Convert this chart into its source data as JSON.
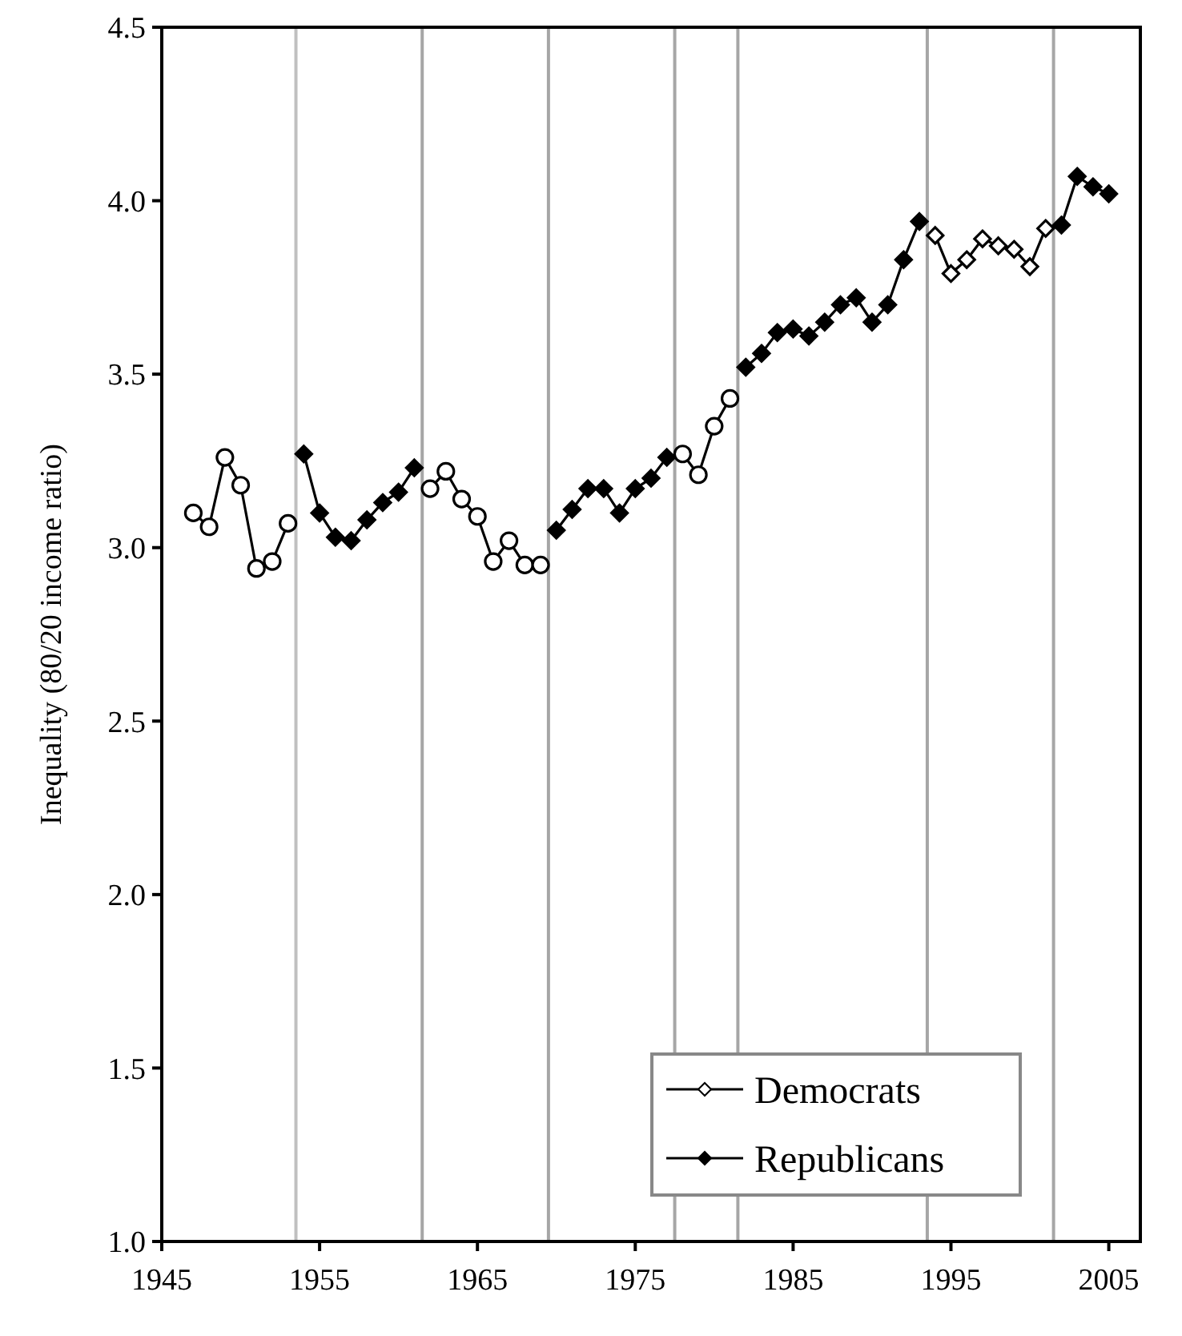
{
  "chart_data": {
    "type": "line",
    "ylabel": "Inequality (80/20 income ratio)",
    "x": [
      1947,
      1948,
      1949,
      1950,
      1951,
      1952,
      1953,
      1954,
      1955,
      1956,
      1957,
      1958,
      1959,
      1960,
      1961,
      1962,
      1963,
      1964,
      1965,
      1966,
      1967,
      1968,
      1969,
      1970,
      1971,
      1972,
      1973,
      1974,
      1975,
      1976,
      1977,
      1978,
      1979,
      1980,
      1981,
      1982,
      1983,
      1984,
      1985,
      1986,
      1987,
      1988,
      1989,
      1990,
      1991,
      1992,
      1993,
      1994,
      1995,
      1996,
      1997,
      1998,
      1999,
      2000,
      2001,
      2002,
      2003,
      2004,
      2005
    ],
    "series": [
      {
        "color": "#000000",
        "marker": "circle",
        "values": [
          3.1,
          3.06,
          3.26,
          3.18,
          2.94,
          2.96,
          3.07,
          null,
          null,
          null,
          null,
          null,
          null,
          null,
          null,
          3.17,
          3.22,
          3.14,
          3.09,
          2.96,
          3.02,
          2.95,
          2.95,
          null,
          null,
          null,
          null,
          null,
          null,
          null,
          null,
          3.27,
          3.21,
          3.35,
          3.43,
          null,
          null,
          null,
          null,
          null,
          null,
          null,
          null,
          null,
          null,
          null,
          null,
          null,
          null,
          null,
          null,
          null,
          null,
          null,
          null,
          null,
          null,
          null,
          null
        ]
      },
      {
        "name": "Democrats",
        "color": "#000000",
        "marker": "diamond",
        "values": [
          null,
          null,
          null,
          null,
          null,
          null,
          null,
          null,
          null,
          null,
          null,
          null,
          null,
          null,
          null,
          null,
          null,
          null,
          null,
          null,
          null,
          null,
          null,
          null,
          null,
          null,
          null,
          null,
          null,
          null,
          null,
          null,
          null,
          null,
          null,
          null,
          null,
          null,
          null,
          null,
          null,
          null,
          null,
          null,
          null,
          null,
          null,
          3.9,
          3.79,
          3.83,
          3.89,
          3.87,
          3.86,
          3.81,
          3.92,
          null,
          null,
          null,
          null
        ]
      },
      {
        "name": "Republicans",
        "color": "#000000",
        "values": [
          null,
          null,
          null,
          null,
          null,
          null,
          null,
          3.27,
          3.1,
          3.03,
          3.02,
          3.08,
          3.13,
          3.16,
          3.23,
          null,
          null,
          null,
          null,
          null,
          null,
          null,
          null,
          3.05,
          3.11,
          3.17,
          3.17,
          3.1,
          3.17,
          3.2,
          3.26,
          null,
          null,
          null,
          null,
          3.52,
          3.56,
          3.62,
          3.63,
          3.61,
          3.65,
          3.7,
          3.72,
          3.65,
          3.7,
          3.83,
          3.94,
          null,
          null,
          null,
          null,
          null,
          null,
          null,
          null,
          3.93,
          4.07,
          4.04,
          4.02
        ]
      }
    ],
    "xlim": [
      1945,
      2007
    ],
    "xticks": [
      1945,
      1955,
      1965,
      1975,
      1985,
      1995,
      2005
    ],
    "ylim": [
      1.0,
      4.5
    ],
    "yticks": [
      {
        "value": 1.0,
        "label": "1.0"
      },
      {
        "value": 1.5,
        "label": "1.5"
      },
      {
        "value": 2.0,
        "label": "2.0"
      },
      {
        "value": 2.5,
        "label": "2.5"
      },
      {
        "value": 3.0,
        "label": "3.0"
      },
      {
        "value": 3.5,
        "label": "3.5"
      },
      {
        "value": 4.0,
        "label": "4.0"
      },
      {
        "value": 4.5,
        "label": "4.5"
      }
    ],
    "ref_lines": [
      {
        "axis": "x",
        "value": 1953.5,
        "color": "#c0c0c0"
      },
      {
        "axis": "x",
        "value": 1961.5,
        "color": "#a6a6a6"
      },
      {
        "axis": "x",
        "value": 1969.5,
        "color": "#a6a6a6"
      },
      {
        "axis": "x",
        "value": 1977.5,
        "color": "#a6a6a6"
      },
      {
        "axis": "x",
        "value": 1981.5,
        "color": "#a6a6a6"
      },
      {
        "axis": "x",
        "value": 1993.5,
        "color": "#a6a6a6"
      },
      {
        "axis": "x",
        "value": 2001.5,
        "color": "#a6a6a6"
      }
    ],
    "legend": "bottom right",
    "marker": "diamond",
    "grid": false,
    "line_style": "solid"
  }
}
